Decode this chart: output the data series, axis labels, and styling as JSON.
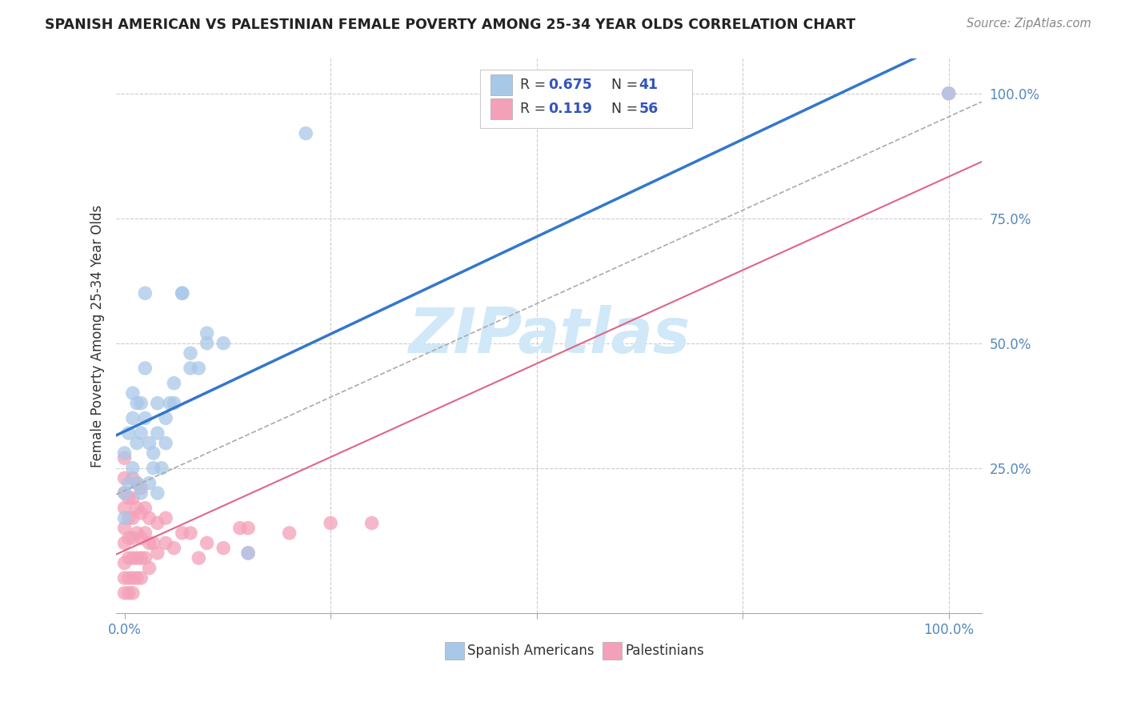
{
  "title": "SPANISH AMERICAN VS PALESTINIAN FEMALE POVERTY AMONG 25-34 YEAR OLDS CORRELATION CHART",
  "source": "Source: ZipAtlas.com",
  "ylabel": "Female Poverty Among 25-34 Year Olds",
  "r_spanish": 0.675,
  "n_spanish": 41,
  "r_palestinian": 0.119,
  "n_palestinian": 56,
  "spanish_color": "#a8c8e8",
  "palestinian_color": "#f4a0b8",
  "line_spanish_color": "#3377cc",
  "line_palestinian_color": "#dd6688",
  "line_palestinian_dashed_color": "#aaaaaa",
  "watermark_color": "#d0e8f8",
  "background_color": "#ffffff",
  "grid_color": "#cccccc",
  "spanish_points_x": [
    0.0,
    0.0,
    0.005,
    0.01,
    0.01,
    0.015,
    0.02,
    0.02,
    0.025,
    0.025,
    0.03,
    0.035,
    0.04,
    0.04,
    0.045,
    0.05,
    0.055,
    0.06,
    0.07,
    0.07,
    0.08,
    0.09,
    0.1,
    0.12,
    0.15,
    0.22,
    1.0,
    0.005,
    0.01,
    0.015,
    0.02,
    0.03,
    0.035,
    0.05,
    0.06,
    0.0,
    0.015,
    0.025,
    0.04,
    0.08,
    0.1
  ],
  "spanish_points_y": [
    0.2,
    0.28,
    0.32,
    0.35,
    0.4,
    0.3,
    0.32,
    0.38,
    0.35,
    0.6,
    0.3,
    0.28,
    0.32,
    0.38,
    0.25,
    0.35,
    0.38,
    0.42,
    0.6,
    0.6,
    0.48,
    0.45,
    0.5,
    0.5,
    0.08,
    0.92,
    1.0,
    0.22,
    0.25,
    0.22,
    0.2,
    0.22,
    0.25,
    0.3,
    0.38,
    0.15,
    0.38,
    0.45,
    0.2,
    0.45,
    0.52
  ],
  "palestinian_points_x": [
    0.0,
    0.0,
    0.0,
    0.0,
    0.0,
    0.0,
    0.0,
    0.0,
    0.0,
    0.005,
    0.005,
    0.005,
    0.005,
    0.005,
    0.005,
    0.01,
    0.01,
    0.01,
    0.01,
    0.01,
    0.01,
    0.01,
    0.015,
    0.015,
    0.015,
    0.015,
    0.015,
    0.02,
    0.02,
    0.02,
    0.02,
    0.02,
    0.025,
    0.025,
    0.025,
    0.03,
    0.03,
    0.03,
    0.035,
    0.04,
    0.04,
    0.05,
    0.05,
    0.06,
    0.07,
    0.08,
    0.09,
    0.1,
    0.12,
    0.14,
    0.15,
    0.15,
    0.2,
    0.25,
    0.3,
    1.0
  ],
  "palestinian_points_y": [
    0.0,
    0.03,
    0.06,
    0.1,
    0.13,
    0.17,
    0.2,
    0.23,
    0.27,
    0.0,
    0.03,
    0.07,
    0.11,
    0.15,
    0.19,
    0.0,
    0.03,
    0.07,
    0.11,
    0.15,
    0.19,
    0.23,
    0.03,
    0.07,
    0.12,
    0.17,
    0.22,
    0.03,
    0.07,
    0.11,
    0.16,
    0.21,
    0.07,
    0.12,
    0.17,
    0.05,
    0.1,
    0.15,
    0.1,
    0.08,
    0.14,
    0.1,
    0.15,
    0.09,
    0.12,
    0.12,
    0.07,
    0.1,
    0.09,
    0.13,
    0.08,
    0.13,
    0.12,
    0.14,
    0.14,
    1.0
  ]
}
